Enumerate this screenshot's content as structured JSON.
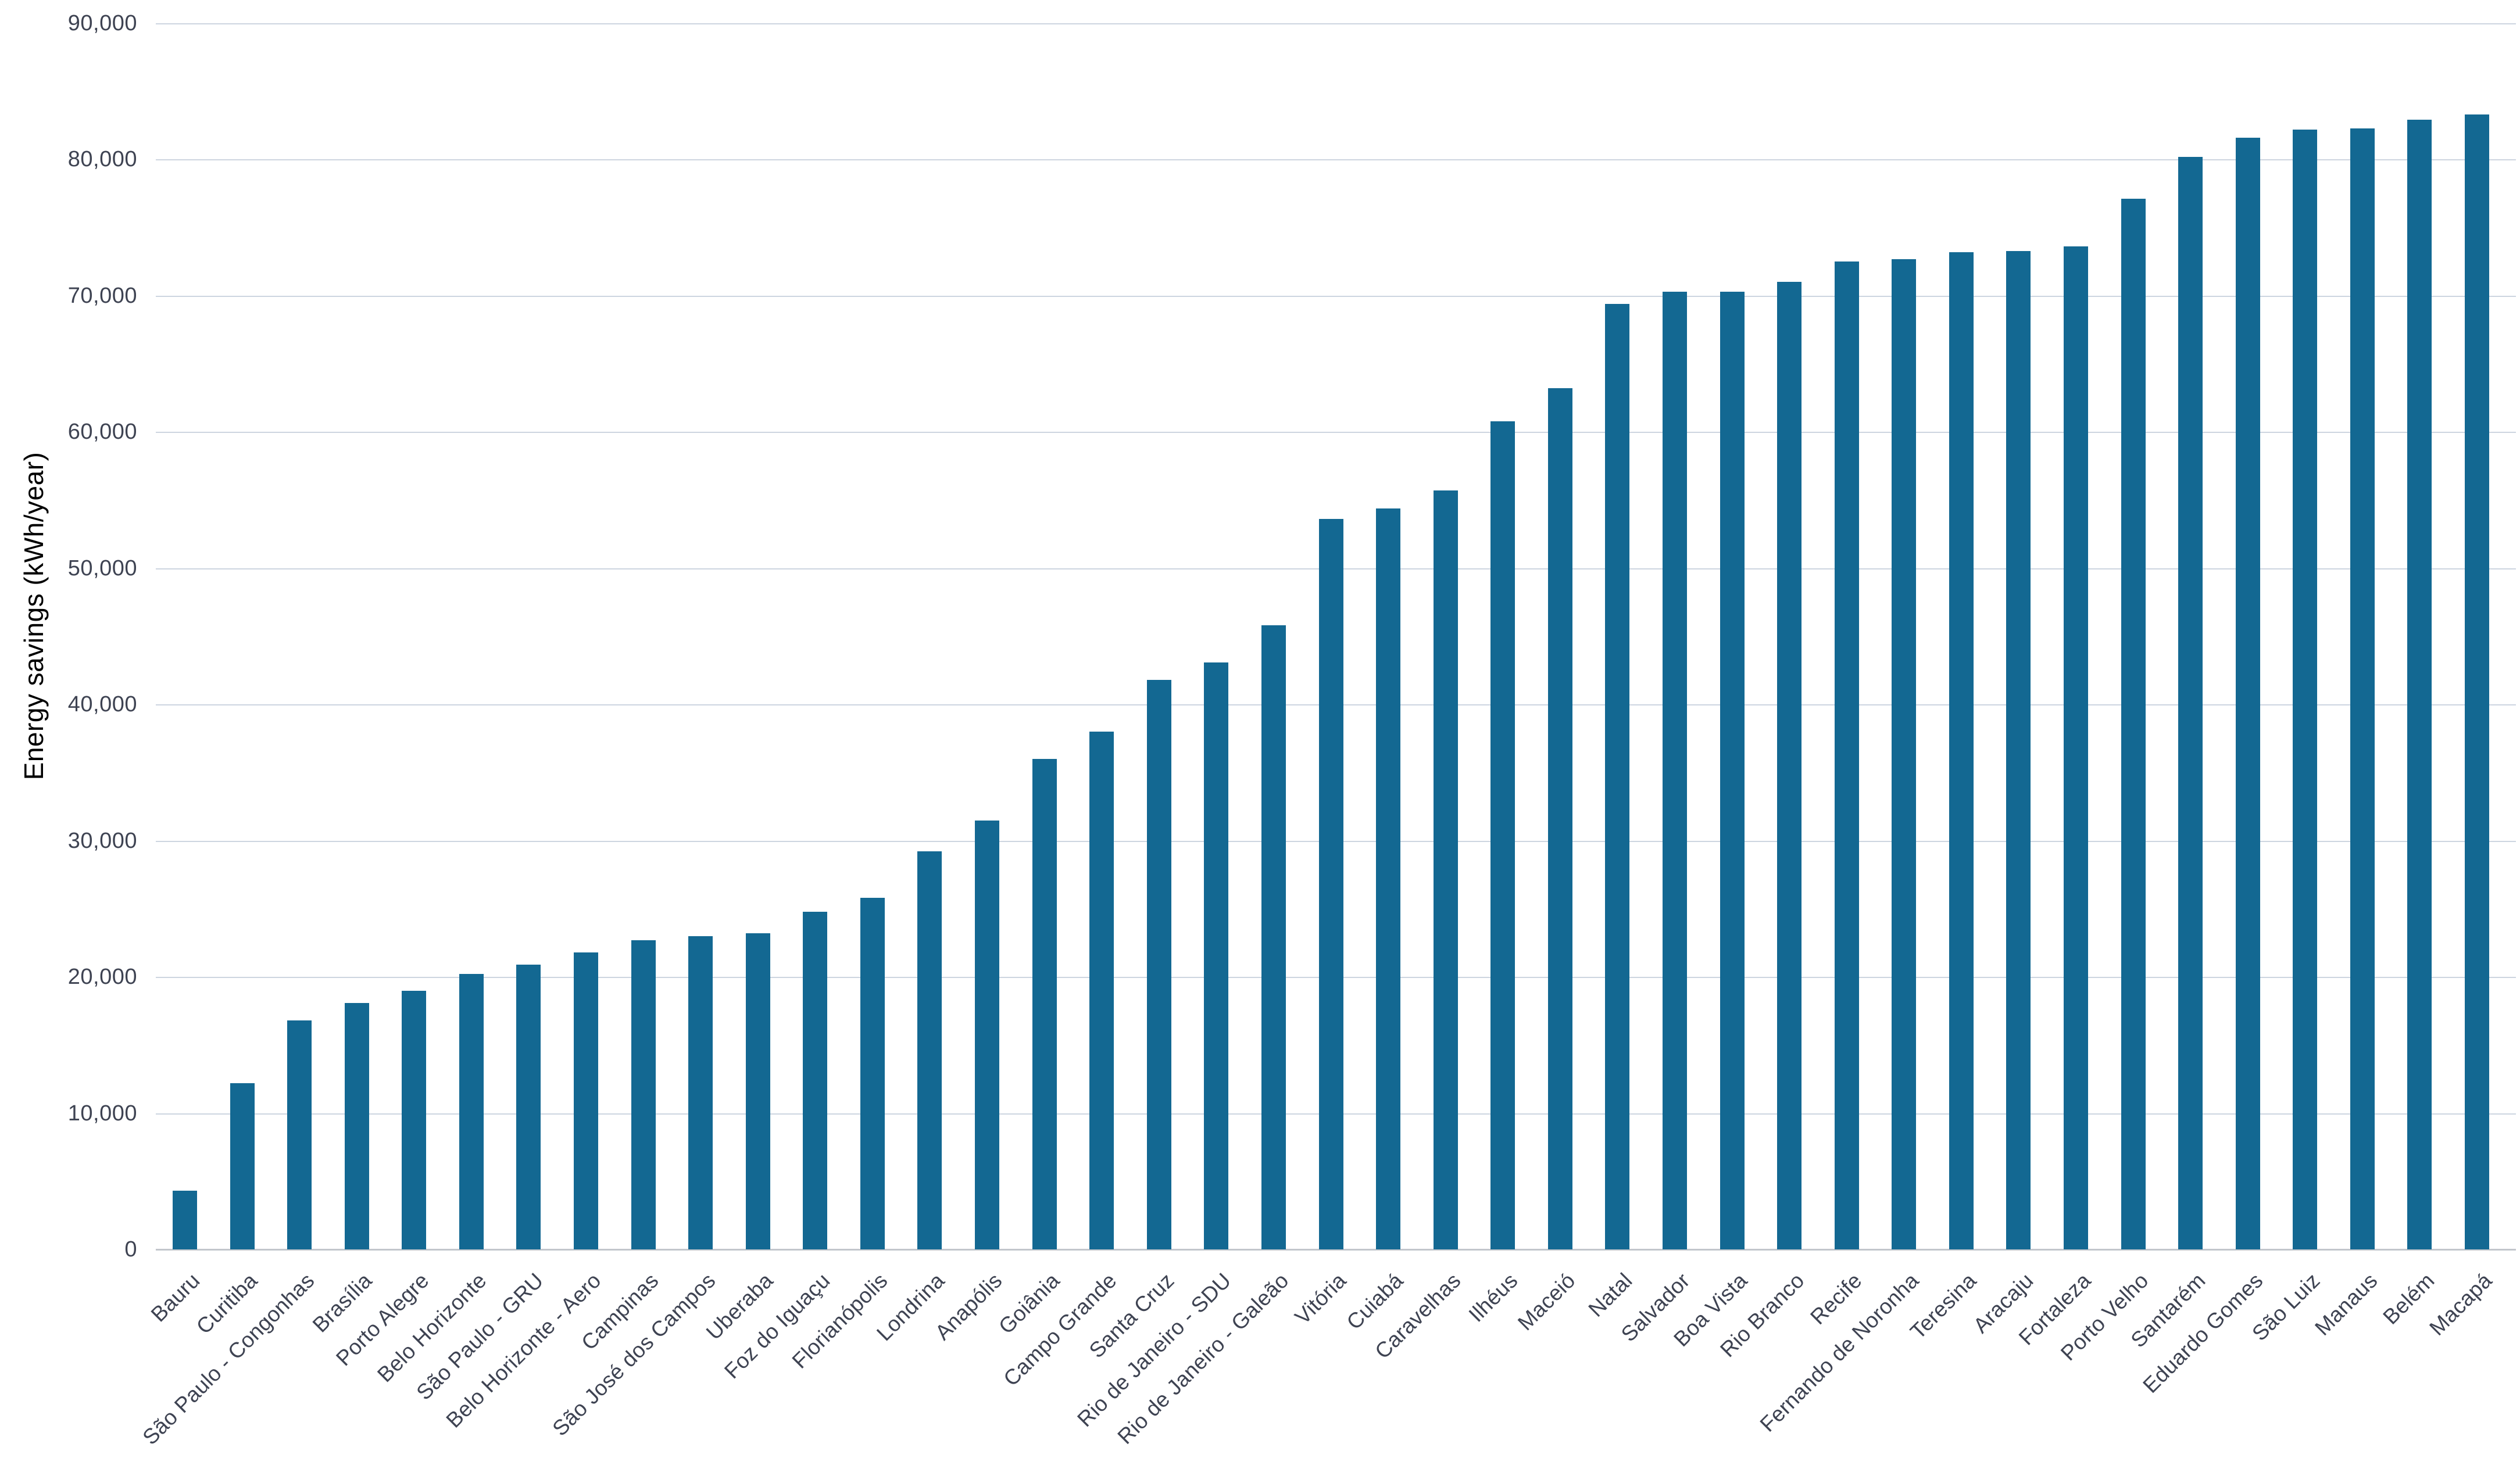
{
  "page": {
    "background": "#ffffff"
  },
  "style": {
    "text_color": "#3e4352",
    "grid_color": "#cdd5e0",
    "axis_color": "#c2c6cc",
    "bar_color": "#136892"
  },
  "chart_data": {
    "type": "bar",
    "title": "",
    "xlabel": "",
    "ylabel": "Energy savings (kWh/year)",
    "ylim": [
      0,
      90000
    ],
    "ytick_step": 10000,
    "ytick_labels": [
      "0",
      "10,000",
      "20,000",
      "30,000",
      "40,000",
      "50,000",
      "60,000",
      "70,000",
      "80,000",
      "90,000"
    ],
    "grid": true,
    "legend": false,
    "bar_color": "#136892",
    "categories": [
      "Bauru",
      "Curitiba",
      "São Paulo - Congonhas",
      "Brasília",
      "Porto Alegre",
      "Belo Horizonte",
      "São Paulo - GRU",
      "Belo Horizonte - Aero",
      "Campinas",
      "São José dos Campos",
      "Uberaba",
      "Foz do Iguaçu",
      "Florianópolis",
      "Londrina",
      "Anapólis",
      "Goiânia",
      "Campo Grande",
      "Santa Cruz",
      "Rio de Janeiro - SDU",
      "Rio de Janeiro - Galeão",
      "Vitória",
      "Cuiabá",
      "Caravelhas",
      "Ilhéus",
      "Maceió",
      "Natal",
      "Salvador",
      "Boa Vista",
      "Rio Branco",
      "Recife",
      "Fernando de Noronha",
      "Teresina",
      "Aracaju",
      "Fortaleza",
      "Porto Velho",
      "Santarém",
      "Eduardo Gomes",
      "São Luiz",
      "Manaus",
      "Belém",
      "Macapá"
    ],
    "values": [
      4300,
      12200,
      16800,
      18100,
      19000,
      20200,
      20900,
      21800,
      22700,
      23000,
      23200,
      24800,
      25800,
      29200,
      31500,
      36000,
      38000,
      41800,
      43100,
      45800,
      53600,
      54400,
      55700,
      60800,
      63200,
      69400,
      70300,
      70300,
      71000,
      72500,
      72700,
      73200,
      73300,
      73600,
      77100,
      80200,
      81600,
      82200,
      82300,
      82900,
      83300
    ]
  }
}
